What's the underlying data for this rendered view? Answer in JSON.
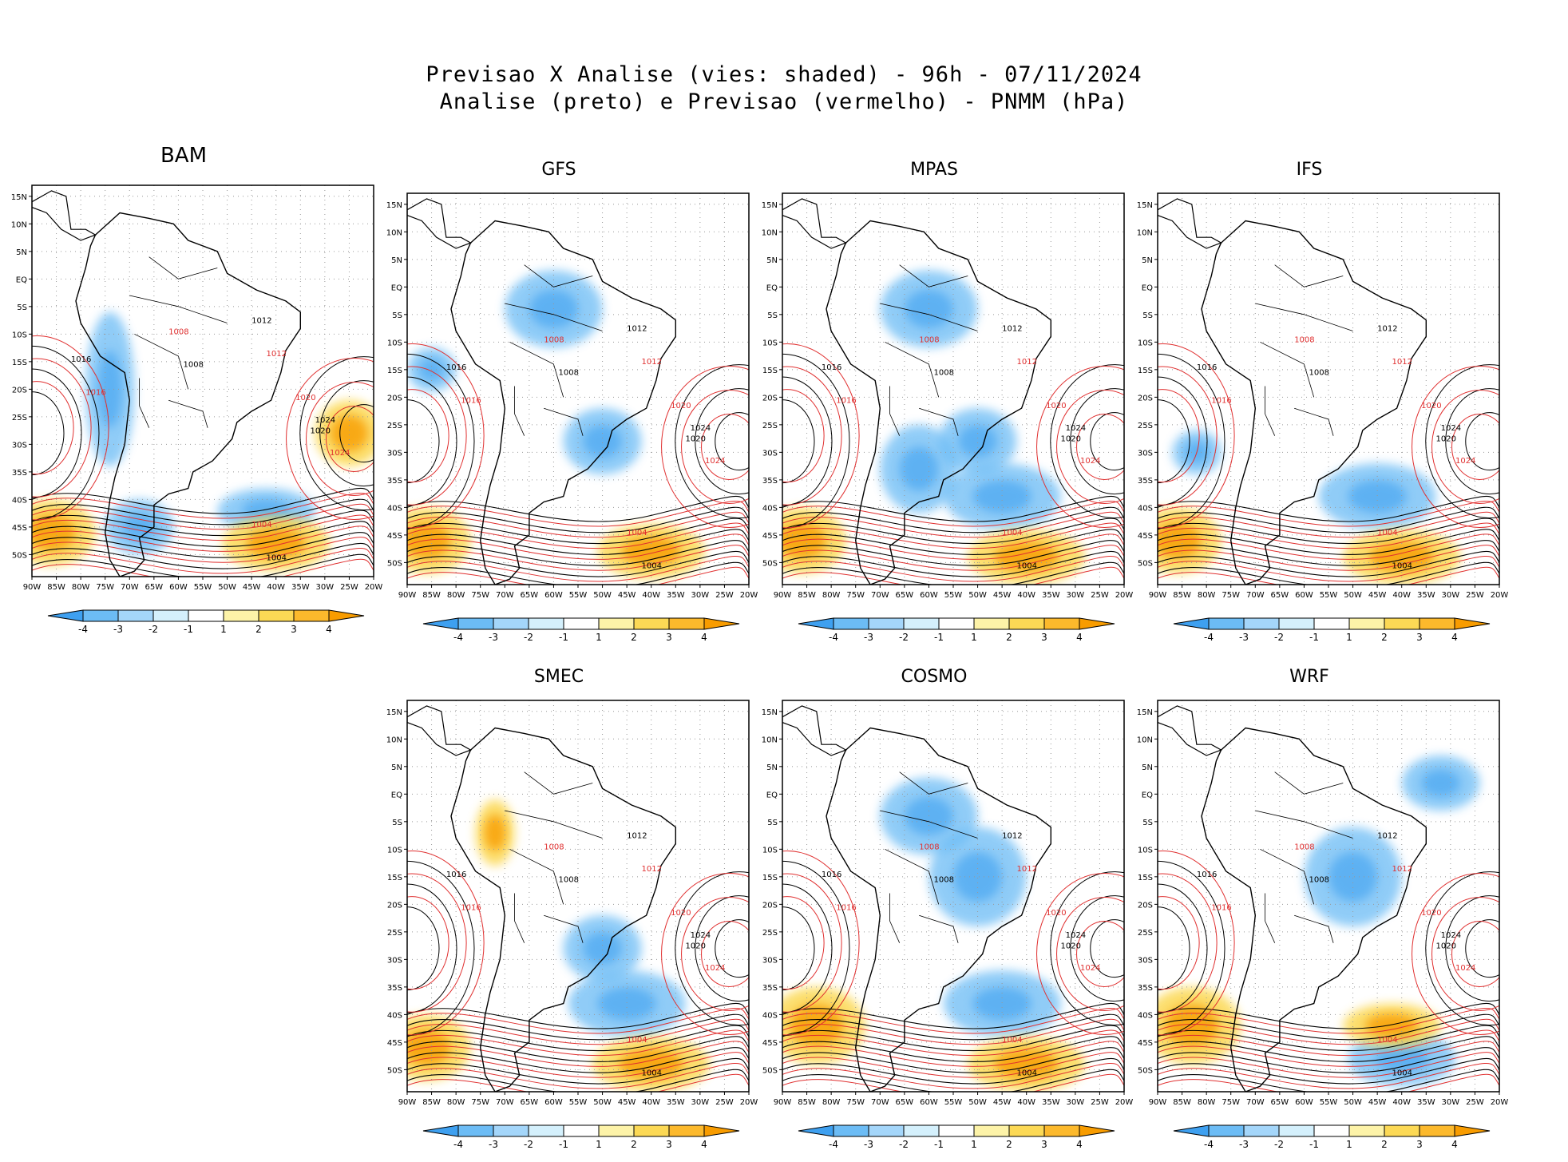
{
  "header": {
    "title_line1": "Previsao X Analise (vies: shaded) - 96h - 07/11/2024",
    "title_line2": "Analise (preto) e Previsao (vermelho) - PNMM (hPa)"
  },
  "chart_data": {
    "type": "heatmap",
    "variable": "PNMM (hPa)",
    "lead_time": "96h",
    "date": "07/11/2024",
    "shading": "vies",
    "contours": {
      "analysis_color": "#000000",
      "forecast_color": "#e03030"
    },
    "lat_ticks": [
      "15N",
      "10N",
      "5N",
      "EQ",
      "5S",
      "10S",
      "15S",
      "20S",
      "25S",
      "30S",
      "35S",
      "40S",
      "45S",
      "50S"
    ],
    "lon_ticks": [
      "90W",
      "85W",
      "80W",
      "75W",
      "70W",
      "65W",
      "60W",
      "55W",
      "50W",
      "45W",
      "40W",
      "35W",
      "30W",
      "25W",
      "20W"
    ],
    "colorbar": {
      "labels": [
        "-4",
        "-3",
        "-2",
        "-1",
        "1",
        "2",
        "3",
        "4"
      ],
      "colors": [
        "#3ea0f0",
        "#6cbcf5",
        "#a4d6fa",
        "#d4f0fc",
        "#ffffff",
        "#fdf3a8",
        "#fcd955",
        "#fcb92c",
        "#f89c00"
      ]
    },
    "models": [
      {
        "name": "BAM",
        "pressure_labels": [
          "1012",
          "1008",
          "1016",
          "1020",
          "1024",
          "1004"
        ],
        "cold_regions": [
          "Andes west coast",
          "Patagonia",
          "South Atlantic 40S"
        ],
        "warm_regions": [
          "Southeast Pacific 45S",
          "South Atlantic 45S",
          "South Atlantic 30S"
        ]
      },
      {
        "name": "GFS",
        "pressure_labels": [
          "1012",
          "1008",
          "1016",
          "1020",
          "1024",
          "1004"
        ],
        "cold_regions": [
          "Amazon",
          "Southern Brazil",
          "Pacific 15S"
        ],
        "warm_regions": [
          "Southeast Pacific 45S",
          "South Atlantic 45S"
        ]
      },
      {
        "name": "MPAS",
        "pressure_labels": [
          "1012",
          "1008",
          "1016",
          "1020",
          "1024",
          "1004"
        ],
        "cold_regions": [
          "Amazon",
          "Southern Brazil",
          "Argentina",
          "South Atlantic 35S"
        ],
        "warm_regions": [
          "Southeast Pacific 45S",
          "South Atlantic 48S"
        ]
      },
      {
        "name": "IFS",
        "pressure_labels": [
          "1012",
          "1008",
          "1016",
          "1020",
          "1024",
          "1004"
        ],
        "cold_regions": [
          "Pacific 30S",
          "South Atlantic 35S"
        ],
        "warm_regions": [
          "Southeast Pacific 45S",
          "South Atlantic 48S"
        ]
      },
      {
        "name": "SMEC",
        "pressure_labels": [
          "1012",
          "1008",
          "1016",
          "1020",
          "1024",
          "1004"
        ],
        "cold_regions": [
          "Southern Brazil",
          "South Atlantic 35S"
        ],
        "warm_regions": [
          "Southeast Pacific 45S",
          "South Atlantic 48S",
          "Andes 5S"
        ]
      },
      {
        "name": "COSMO",
        "pressure_labels": [
          "1012",
          "1008",
          "1016",
          "1020",
          "1024",
          "1004"
        ],
        "cold_regions": [
          "Amazon",
          "Brazil",
          "South Atlantic 35S"
        ],
        "warm_regions": [
          "Southeast Pacific 40S",
          "South Atlantic 48S"
        ]
      },
      {
        "name": "WRF",
        "pressure_labels": [
          "1012",
          "1008",
          "1016",
          "1020",
          "1024",
          "1004"
        ],
        "cold_regions": [
          "Brazil",
          "Atlantic 5N",
          "South Atlantic 45S"
        ],
        "warm_regions": [
          "Southeast Pacific 40S",
          "South Atlantic 40S"
        ]
      }
    ]
  }
}
